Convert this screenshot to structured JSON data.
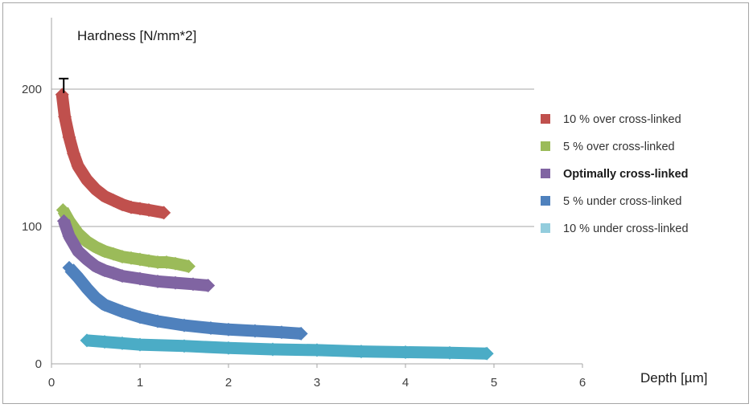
{
  "chart_data": {
    "type": "line",
    "title": "",
    "xlabel": "Depth [µm]",
    "ylabel": "Hardness [N/mm*2]",
    "xlim": [
      0,
      6
    ],
    "ylim": [
      0,
      240
    ],
    "xticks": [
      "0",
      "1",
      "2",
      "3",
      "4",
      "5",
      "6"
    ],
    "yticks": [
      "0",
      "100",
      "200"
    ],
    "grid": "horizontal",
    "legend_position": "right",
    "series": [
      {
        "name": "10 % over cross-linked",
        "color": "#c0504d",
        "bold": false,
        "error_bar": true,
        "x": [
          0.12,
          0.15,
          0.2,
          0.25,
          0.3,
          0.4,
          0.5,
          0.6,
          0.7,
          0.8,
          0.9,
          1.0,
          1.1,
          1.27
        ],
        "y": [
          196,
          180,
          165,
          153,
          144,
          134,
          127,
          122,
          119,
          116,
          114,
          113,
          112,
          110
        ]
      },
      {
        "name": "5 % over cross-linked",
        "color": "#9bbb59",
        "bold": false,
        "error_bar": false,
        "x": [
          0.13,
          0.2,
          0.3,
          0.4,
          0.5,
          0.6,
          0.7,
          0.8,
          0.9,
          1.0,
          1.1,
          1.2,
          1.3,
          1.4,
          1.55
        ],
        "y": [
          112,
          104,
          95,
          89,
          85,
          82,
          80,
          78,
          77,
          76,
          75,
          74,
          74,
          73,
          71
        ]
      },
      {
        "name": "Optimally cross-linked",
        "color": "#8064a2",
        "bold": true,
        "error_bar": false,
        "x": [
          0.14,
          0.2,
          0.3,
          0.4,
          0.5,
          0.6,
          0.7,
          0.8,
          1.0,
          1.2,
          1.4,
          1.6,
          1.77
        ],
        "y": [
          104,
          93,
          82,
          76,
          71,
          68,
          66,
          64,
          62,
          60,
          59,
          58,
          57
        ]
      },
      {
        "name": "5 % under cross-linked",
        "color": "#4f81bd",
        "bold": false,
        "error_bar": false,
        "x": [
          0.2,
          0.3,
          0.4,
          0.5,
          0.6,
          0.8,
          1.0,
          1.2,
          1.5,
          1.8,
          2.0,
          2.3,
          2.6,
          2.82
        ],
        "y": [
          70,
          63,
          55,
          48,
          43,
          38,
          34,
          31,
          28,
          26,
          25,
          24,
          23,
          22
        ]
      },
      {
        "name": "10 % under cross-linked",
        "color": "#4bacc6",
        "legend_color": "#93cddd",
        "bold": false,
        "error_bar": false,
        "x": [
          0.4,
          0.6,
          0.8,
          1.0,
          1.5,
          2.0,
          2.5,
          3.0,
          3.5,
          4.0,
          4.5,
          4.92
        ],
        "y": [
          17,
          16,
          15,
          14,
          13,
          11.5,
          10.5,
          10,
          9,
          8.5,
          8,
          7.5
        ]
      }
    ]
  }
}
